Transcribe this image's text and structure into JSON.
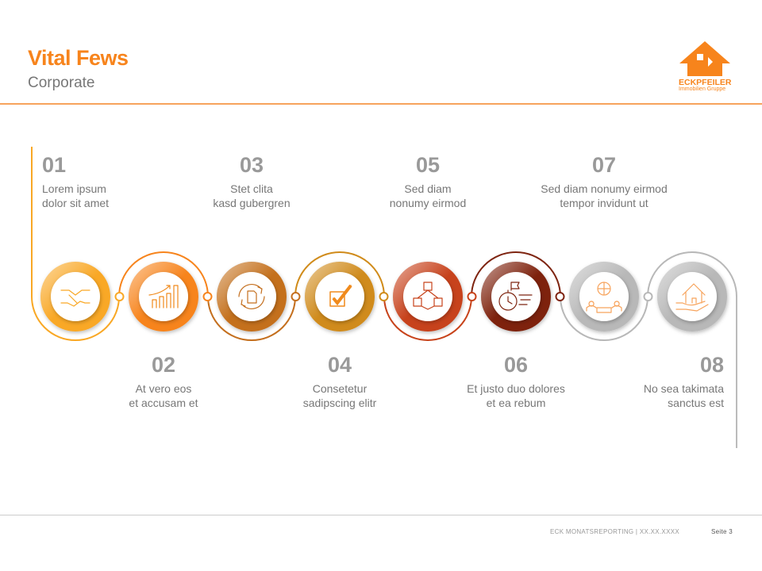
{
  "header": {
    "title": "Vital Fews",
    "subtitle": "Corporate"
  },
  "logo": {
    "name": "ECKPFEILER",
    "tagline": "Immobilien Gruppe"
  },
  "steps": [
    {
      "number": "01",
      "line1": "Lorem ipsum",
      "line2": "dolor sit amet",
      "icon": "handshake-icon",
      "color": "#f9a825"
    },
    {
      "number": "02",
      "line1": "At vero eos",
      "line2": "et accusam et",
      "icon": "growth-chart-icon",
      "color": "#f7841c"
    },
    {
      "number": "03",
      "line1": "Stet clita",
      "line2": "kasd gubergren",
      "icon": "document-refresh-icon",
      "color": "#c46f1e"
    },
    {
      "number": "04",
      "line1": "Consetetur",
      "line2": "sadipscing elitr",
      "icon": "checkbox-icon",
      "color": "#d08b1a"
    },
    {
      "number": "05",
      "line1": "Sed diam",
      "line2": "nonumy eirmod",
      "icon": "cubes-network-icon",
      "color": "#c7431b"
    },
    {
      "number": "06",
      "line1": "Et justo duo dolores",
      "line2": "et ea rebum",
      "icon": "stopwatch-flag-icon",
      "color": "#7e2410"
    },
    {
      "number": "07",
      "line1": "Sed diam nonumy eirmod",
      "line2": "tempor invidunt ut",
      "icon": "global-team-icon",
      "color": "#b8b8b8"
    },
    {
      "number": "08",
      "line1": "No sea takimata",
      "line2": "sanctus est",
      "icon": "house-in-hand-icon",
      "color": "#b8b8b8"
    }
  ],
  "footer": {
    "report": "ECK MONATSREPORTING | XX.XX.XXXX",
    "page": "Seite 3"
  }
}
